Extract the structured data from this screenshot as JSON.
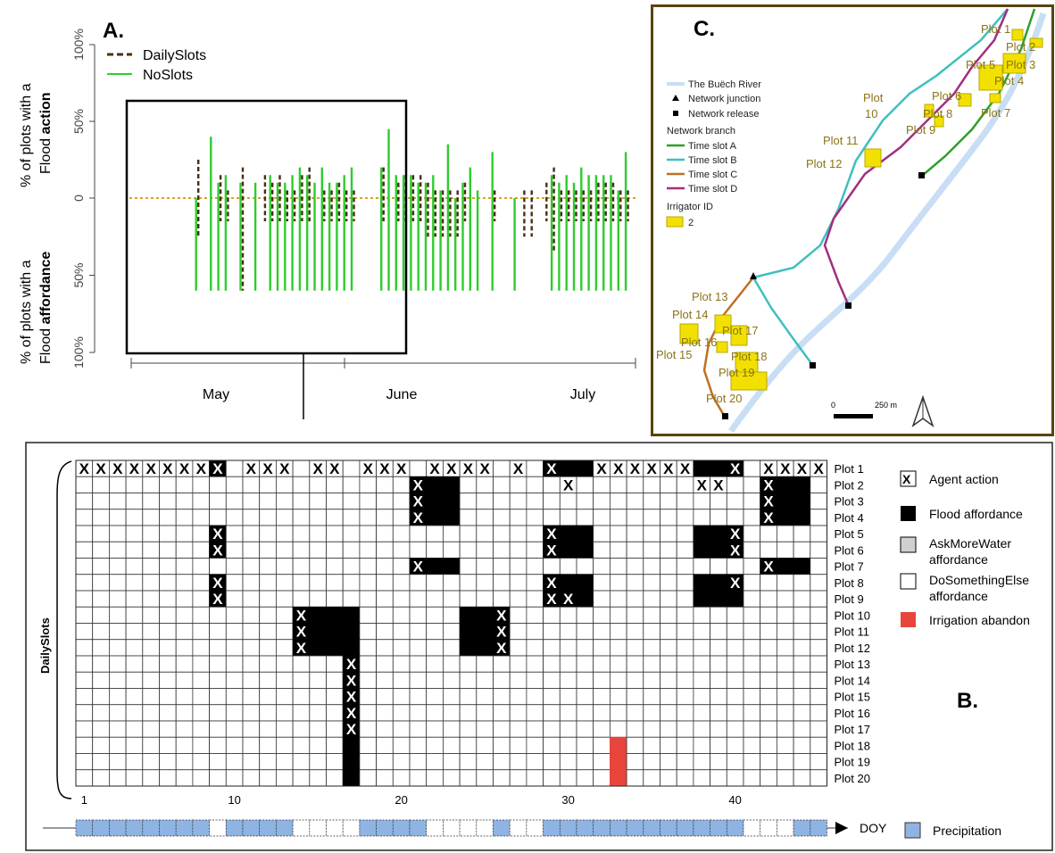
{
  "panel_a": {
    "label": "A.",
    "ylabel_top_pre": "% of plots with a",
    "ylabel_top_bold_pre": "Flood ",
    "ylabel_top_bold": "action",
    "ylabel_bottom_pre": "% of plots with a",
    "ylabel_bottom_bold_pre": "Flood ",
    "ylabel_bottom_bold": "affordance",
    "ticks": [
      "100%",
      "50%",
      "0",
      "50%",
      "100%"
    ],
    "months": [
      "May",
      "June",
      "July"
    ],
    "legend": [
      "DailySlots",
      "NoSlots"
    ]
  },
  "panel_b": {
    "label": "B.",
    "ylabel": "DailySlots",
    "xaxis_ticks": [
      "1",
      "10",
      "20",
      "30",
      "40"
    ],
    "doy_label": "DOY",
    "precip_label": "Precipitation",
    "legend": [
      {
        "key": "action",
        "label": "Agent action",
        "label2": ""
      },
      {
        "key": "flood",
        "label": "Flood affordance",
        "label2": ""
      },
      {
        "key": "askmore",
        "label": "AskMoreWater",
        "label2": "affordance"
      },
      {
        "key": "dosomething",
        "label": "DoSomethingElse",
        "label2": "affordance"
      },
      {
        "key": "abandon",
        "label": "Irrigation abandon",
        "label2": ""
      }
    ],
    "plots": [
      "Plot 1",
      "Plot 2",
      "Plot 3",
      "Plot 4",
      "Plot 5",
      "Plot 6",
      "Plot 7",
      "Plot 8",
      "Plot 9",
      "Plot 10",
      "Plot 11",
      "Plot 12",
      "Plot 13",
      "Plot 14",
      "Plot 15",
      "Plot 16",
      "Plot 17",
      "Plot 18",
      "Plot 19",
      "Plot 20"
    ]
  },
  "panel_c": {
    "label": "C.",
    "legend_river": "The Buëch River",
    "legend_junction": "Network junction",
    "legend_release": "Network release",
    "legend_branch_title": "Network branch",
    "branches": [
      {
        "label": "Time slot A",
        "color": "#2ca02c"
      },
      {
        "label": "Time slot B",
        "color": "#3fbfbf"
      },
      {
        "label": "Time slot C",
        "color": "#c07020"
      },
      {
        "label": "Time slot D",
        "color": "#a03080"
      }
    ],
    "irrigator_title": "Irrigator ID",
    "irrigator_example": "2",
    "scale_zero": "0",
    "scale_label": "250 m",
    "plot_labels": [
      "Plot 1",
      "Plot 2",
      "Plot 3",
      "Plot 4",
      "Plot 5",
      "Plot 6",
      "Plot 7",
      "Plot 8",
      "Plot 9",
      "Plot 10",
      "Plot 11",
      "Plot 12",
      "Plot 13",
      "Plot 14",
      "Plot 15",
      "Plot 16",
      "Plot 17",
      "Plot 18",
      "Plot 19",
      "Plot 20"
    ]
  },
  "chart_data": [
    {
      "type": "bar",
      "title": "",
      "xlabel": "",
      "ylabel": "% of plots with a Flood action / % of plots with a Flood affordance",
      "ylim": [
        -100,
        100
      ],
      "colors": {
        "DailySlots": "#4a2e10",
        "NoSlots": "#2ecc2e",
        "zero_line": "#e0a020"
      },
      "series": [
        {
          "name": "NoSlots",
          "x": [
            9,
            11,
            12,
            13,
            15,
            17,
            19,
            20,
            21,
            22,
            23,
            24,
            25,
            26,
            27,
            28,
            29,
            30,
            34,
            35,
            36,
            37,
            38,
            39,
            40,
            41,
            42,
            43,
            44,
            45,
            46,
            47,
            49,
            52,
            57,
            58,
            59,
            60,
            61,
            62,
            63,
            64,
            65,
            66,
            67
          ],
          "action": [
            0,
            40,
            10,
            15,
            10,
            10,
            15,
            10,
            10,
            15,
            20,
            15,
            10,
            20,
            10,
            10,
            15,
            20,
            20,
            45,
            15,
            15,
            15,
            10,
            10,
            15,
            5,
            35,
            0,
            10,
            20,
            5,
            30,
            0,
            15,
            10,
            15,
            10,
            20,
            15,
            15,
            15,
            15,
            5,
            30
          ],
          "affordance": [
            60,
            60,
            60,
            60,
            60,
            60,
            60,
            60,
            60,
            60,
            60,
            60,
            60,
            60,
            60,
            60,
            60,
            60,
            60,
            60,
            60,
            60,
            60,
            60,
            60,
            60,
            60,
            60,
            60,
            60,
            60,
            60,
            60,
            60,
            60,
            60,
            60,
            60,
            60,
            60,
            60,
            60,
            60,
            60,
            60
          ]
        },
        {
          "name": "DailySlots",
          "x": [
            9,
            12,
            13,
            15,
            18,
            19,
            20,
            21,
            22,
            23,
            24,
            26,
            27,
            28,
            29,
            30,
            34,
            36,
            37,
            38,
            39,
            40,
            41,
            42,
            43,
            44,
            45,
            49,
            53,
            54,
            56,
            57,
            58,
            59,
            60,
            61,
            62,
            63,
            64,
            65,
            66,
            67
          ],
          "action": [
            25,
            15,
            5,
            20,
            15,
            10,
            15,
            5,
            5,
            15,
            20,
            5,
            5,
            10,
            5,
            5,
            20,
            10,
            15,
            15,
            15,
            10,
            5,
            5,
            5,
            5,
            10,
            5,
            5,
            5,
            10,
            20,
            5,
            5,
            5,
            5,
            5,
            10,
            10,
            10,
            5,
            5
          ],
          "affordance": [
            25,
            15,
            15,
            60,
            15,
            15,
            15,
            15,
            15,
            15,
            15,
            15,
            15,
            15,
            15,
            15,
            15,
            15,
            15,
            15,
            15,
            25,
            25,
            25,
            25,
            25,
            15,
            15,
            25,
            25,
            15,
            35,
            15,
            15,
            15,
            15,
            15,
            15,
            15,
            15,
            15,
            15
          ]
        }
      ],
      "categories": [
        "May",
        "June",
        "July"
      ]
    },
    {
      "type": "heatmap",
      "title": "",
      "xlabel": "DOY",
      "ylabel": "DailySlots",
      "days": 45,
      "rows": [
        "Plot 1",
        "Plot 2",
        "Plot 3",
        "Plot 4",
        "Plot 5",
        "Plot 6",
        "Plot 7",
        "Plot 8",
        "Plot 9",
        "Plot 10",
        "Plot 11",
        "Plot 12",
        "Plot 13",
        "Plot 14",
        "Plot 15",
        "Plot 16",
        "Plot 17",
        "Plot 18",
        "Plot 19",
        "Plot 20"
      ],
      "colors": {
        "flood": "#000000",
        "abandon": "#e8453c",
        "empty": "#ffffff",
        "precip": "#8fb4e3",
        "action_mark": "X"
      },
      "flood_cells": [
        [
          1,
          9
        ],
        [
          1,
          29
        ],
        [
          1,
          30
        ],
        [
          1,
          31
        ],
        [
          1,
          38
        ],
        [
          1,
          39
        ],
        [
          1,
          40
        ],
        [
          2,
          21
        ],
        [
          2,
          22
        ],
        [
          2,
          23
        ],
        [
          2,
          42
        ],
        [
          2,
          43
        ],
        [
          2,
          44
        ],
        [
          3,
          21
        ],
        [
          3,
          22
        ],
        [
          3,
          23
        ],
        [
          3,
          42
        ],
        [
          3,
          43
        ],
        [
          3,
          44
        ],
        [
          4,
          21
        ],
        [
          4,
          22
        ],
        [
          4,
          23
        ],
        [
          4,
          42
        ],
        [
          4,
          43
        ],
        [
          4,
          44
        ],
        [
          5,
          9
        ],
        [
          5,
          29
        ],
        [
          5,
          30
        ],
        [
          5,
          31
        ],
        [
          5,
          38
        ],
        [
          5,
          39
        ],
        [
          5,
          40
        ],
        [
          6,
          9
        ],
        [
          6,
          29
        ],
        [
          6,
          30
        ],
        [
          6,
          31
        ],
        [
          6,
          38
        ],
        [
          6,
          39
        ],
        [
          6,
          40
        ],
        [
          7,
          21
        ],
        [
          7,
          22
        ],
        [
          7,
          23
        ],
        [
          7,
          42
        ],
        [
          7,
          43
        ],
        [
          7,
          44
        ],
        [
          8,
          9
        ],
        [
          8,
          29
        ],
        [
          8,
          30
        ],
        [
          8,
          31
        ],
        [
          8,
          38
        ],
        [
          8,
          39
        ],
        [
          8,
          40
        ],
        [
          9,
          9
        ],
        [
          9,
          29
        ],
        [
          9,
          30
        ],
        [
          9,
          31
        ],
        [
          9,
          38
        ],
        [
          9,
          39
        ],
        [
          9,
          40
        ],
        [
          10,
          14
        ],
        [
          10,
          15
        ],
        [
          10,
          16
        ],
        [
          10,
          17
        ],
        [
          10,
          24
        ],
        [
          10,
          25
        ],
        [
          10,
          26
        ],
        [
          11,
          14
        ],
        [
          11,
          15
        ],
        [
          11,
          16
        ],
        [
          11,
          17
        ],
        [
          11,
          24
        ],
        [
          11,
          25
        ],
        [
          11,
          26
        ],
        [
          12,
          14
        ],
        [
          12,
          15
        ],
        [
          12,
          16
        ],
        [
          12,
          17
        ],
        [
          12,
          24
        ],
        [
          12,
          25
        ],
        [
          12,
          26
        ],
        [
          13,
          17
        ],
        [
          14,
          17
        ],
        [
          15,
          17
        ],
        [
          16,
          17
        ],
        [
          17,
          17
        ],
        [
          18,
          17
        ],
        [
          19,
          17
        ],
        [
          20,
          17
        ]
      ],
      "action_cells": [
        [
          1,
          1
        ],
        [
          1,
          2
        ],
        [
          1,
          3
        ],
        [
          1,
          4
        ],
        [
          1,
          5
        ],
        [
          1,
          6
        ],
        [
          1,
          7
        ],
        [
          1,
          8
        ],
        [
          1,
          9
        ],
        [
          1,
          11
        ],
        [
          1,
          12
        ],
        [
          1,
          13
        ],
        [
          1,
          15
        ],
        [
          1,
          16
        ],
        [
          1,
          18
        ],
        [
          1,
          19
        ],
        [
          1,
          20
        ],
        [
          1,
          22
        ],
        [
          1,
          23
        ],
        [
          1,
          24
        ],
        [
          1,
          25
        ],
        [
          1,
          27
        ],
        [
          1,
          29
        ],
        [
          1,
          32
        ],
        [
          1,
          33
        ],
        [
          1,
          34
        ],
        [
          1,
          35
        ],
        [
          1,
          36
        ],
        [
          1,
          37
        ],
        [
          1,
          40
        ],
        [
          1,
          42
        ],
        [
          1,
          43
        ],
        [
          1,
          44
        ],
        [
          1,
          45
        ],
        [
          2,
          21
        ],
        [
          2,
          30
        ],
        [
          2,
          38
        ],
        [
          2,
          39
        ],
        [
          2,
          42
        ],
        [
          3,
          21
        ],
        [
          3,
          42
        ],
        [
          4,
          21
        ],
        [
          4,
          42
        ],
        [
          5,
          9
        ],
        [
          5,
          29
        ],
        [
          5,
          40
        ],
        [
          6,
          9
        ],
        [
          6,
          29
        ],
        [
          6,
          40
        ],
        [
          7,
          21
        ],
        [
          7,
          42
        ],
        [
          8,
          9
        ],
        [
          8,
          29
        ],
        [
          8,
          40
        ],
        [
          9,
          9
        ],
        [
          9,
          29
        ],
        [
          9,
          30
        ],
        [
          10,
          14
        ],
        [
          10,
          26
        ],
        [
          11,
          14
        ],
        [
          11,
          26
        ],
        [
          12,
          14
        ],
        [
          12,
          26
        ],
        [
          13,
          17
        ],
        [
          14,
          17
        ],
        [
          15,
          17
        ],
        [
          16,
          17
        ],
        [
          17,
          17
        ]
      ],
      "abandon_cells": [
        [
          18,
          33
        ],
        [
          19,
          33
        ],
        [
          20,
          33
        ]
      ],
      "precipitation_days": [
        1,
        2,
        3,
        4,
        5,
        6,
        7,
        8,
        10,
        11,
        12,
        13,
        18,
        19,
        20,
        21,
        26,
        29,
        30,
        31,
        32,
        33,
        34,
        35,
        36,
        37,
        38,
        39,
        40,
        44,
        45
      ]
    }
  ]
}
